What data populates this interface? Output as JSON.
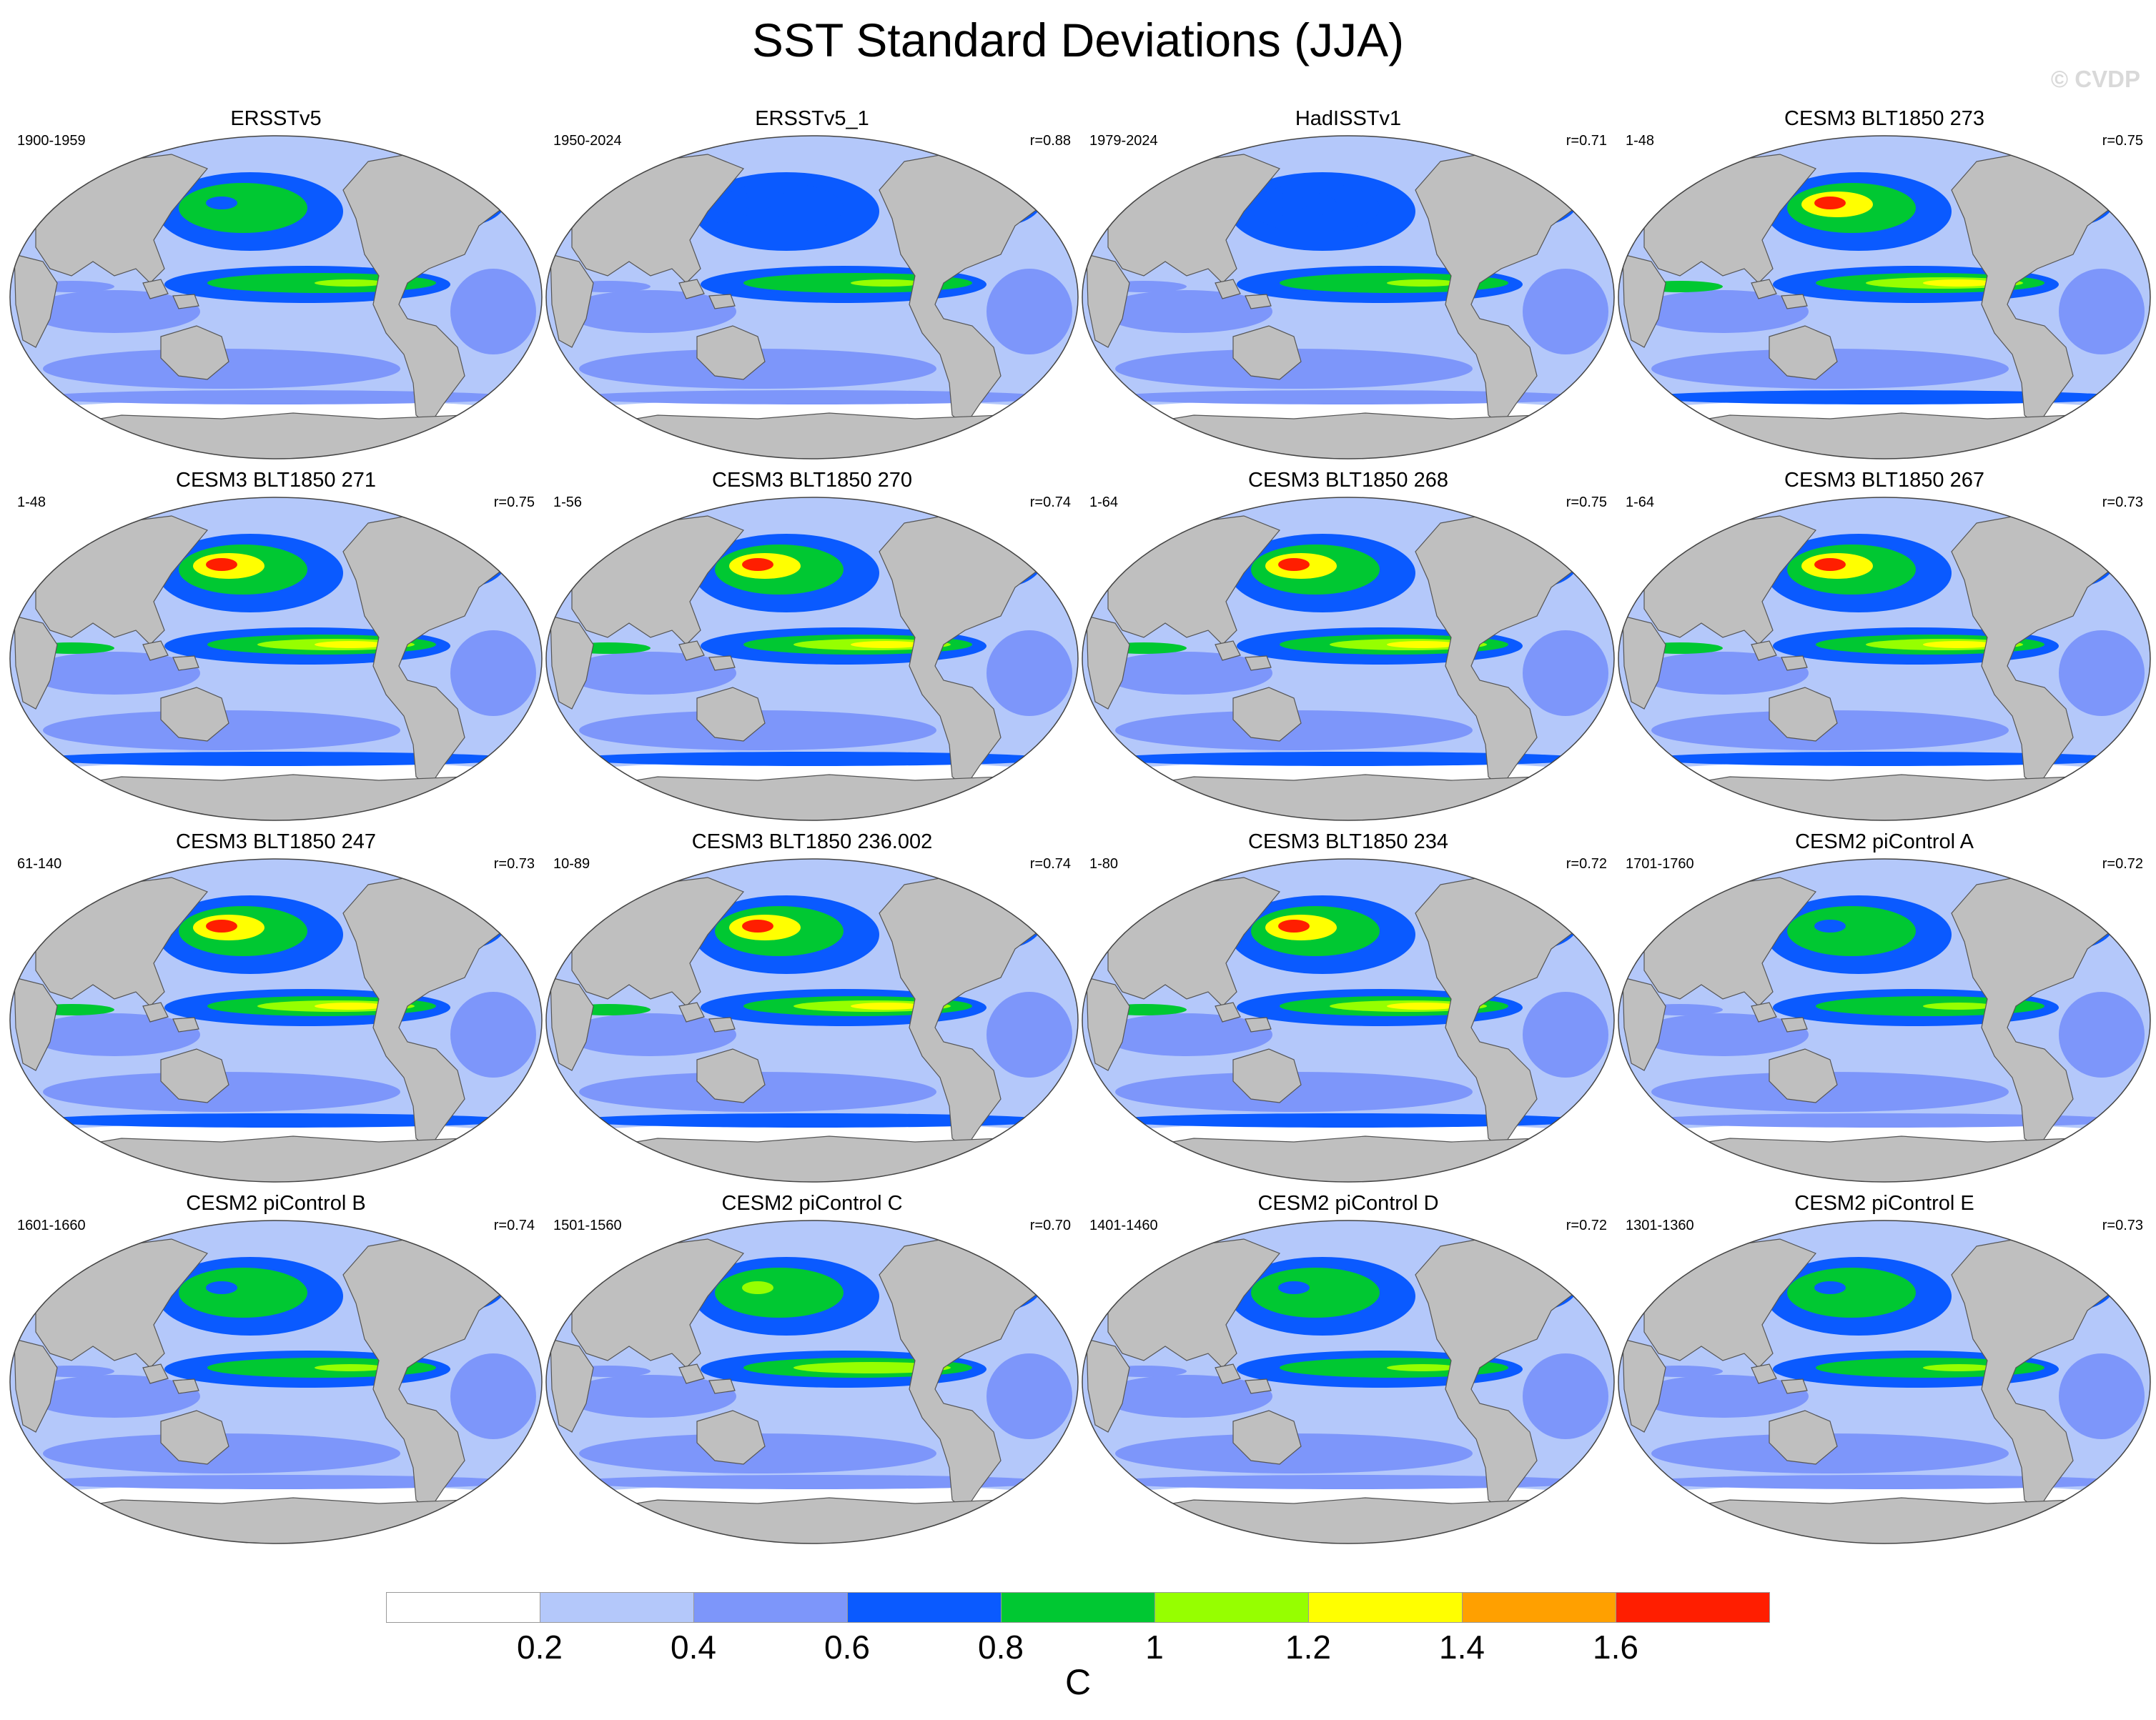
{
  "title": "SST Standard Deviations (JJA)",
  "watermark": "© CVDP",
  "panels": [
    {
      "title": "ERSSTv5",
      "period": "1900-1959",
      "corr": "",
      "intensity": 0.55
    },
    {
      "title": "ERSSTv5_1",
      "period": "1950-2024",
      "corr": "r=0.88",
      "intensity": 0.5
    },
    {
      "title": "HadISSTv1",
      "period": "1979-2024",
      "corr": "r=0.71",
      "intensity": 0.35
    },
    {
      "title": "CESM3 BLT1850 273",
      "period": "1-48",
      "corr": "r=0.75",
      "intensity": 0.95
    },
    {
      "title": "CESM3 BLT1850 271",
      "period": "1-48",
      "corr": "r=0.75",
      "intensity": 0.95
    },
    {
      "title": "CESM3 BLT1850 270",
      "period": "1-56",
      "corr": "r=0.74",
      "intensity": 1.0
    },
    {
      "title": "CESM3 BLT1850 268",
      "period": "1-64",
      "corr": "r=0.75",
      "intensity": 0.95
    },
    {
      "title": "CESM3 BLT1850 267",
      "period": "1-64",
      "corr": "r=0.73",
      "intensity": 0.95
    },
    {
      "title": "CESM3 BLT1850 247",
      "period": "61-140",
      "corr": "r=0.73",
      "intensity": 1.0
    },
    {
      "title": "CESM3 BLT1850 236.002",
      "period": "10-89",
      "corr": "r=0.74",
      "intensity": 1.0
    },
    {
      "title": "CESM3 BLT1850 234",
      "period": "1-80",
      "corr": "r=0.72",
      "intensity": 1.0
    },
    {
      "title": "CESM2 piControl A",
      "period": "1701-1760",
      "corr": "r=0.72",
      "intensity": 0.6
    },
    {
      "title": "CESM2 piControl B",
      "period": "1601-1660",
      "corr": "r=0.74",
      "intensity": 0.55
    },
    {
      "title": "CESM2 piControl C",
      "period": "1501-1560",
      "corr": "r=0.70",
      "intensity": 0.7
    },
    {
      "title": "CESM2 piControl D",
      "period": "1401-1460",
      "corr": "r=0.72",
      "intensity": 0.6
    },
    {
      "title": "CESM2 piControl E",
      "period": "1301-1360",
      "corr": "r=0.73",
      "intensity": 0.6
    }
  ],
  "colorbar": {
    "colors": [
      "#ffffff",
      "#b4c8fa",
      "#7d96fa",
      "#0a5aff",
      "#00c832",
      "#96ff00",
      "#ffff00",
      "#ffa000",
      "#ff1e00"
    ],
    "ticks": [
      "0.2",
      "0.4",
      "0.6",
      "0.8",
      "1",
      "1.2",
      "1.4",
      "1.6"
    ],
    "unit": "C"
  },
  "colors": {
    "land": "#bfbfbf",
    "coast": "#555555",
    "background": "#ffffff"
  }
}
